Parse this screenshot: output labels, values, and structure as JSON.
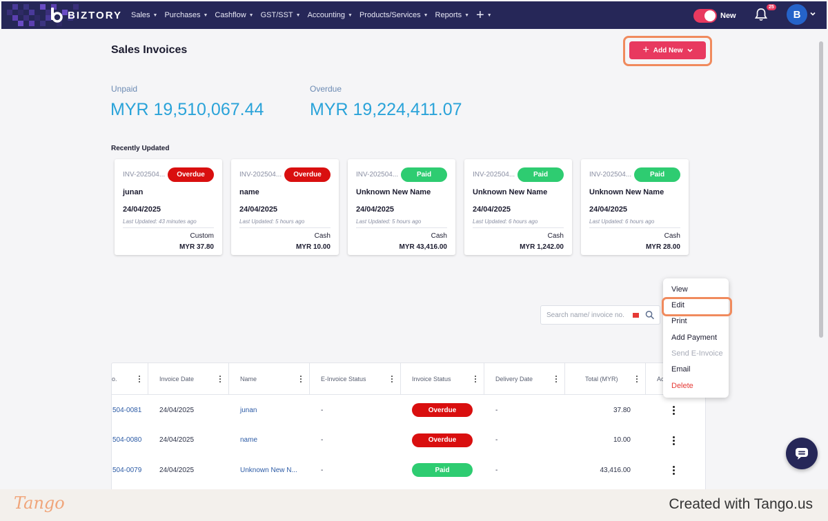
{
  "nav": {
    "brand": "BIZTORY",
    "menu": [
      {
        "label": "Sales"
      },
      {
        "label": "Purchases"
      },
      {
        "label": "Cashflow"
      },
      {
        "label": "GST/SST"
      },
      {
        "label": "Accounting"
      },
      {
        "label": "Products/Services"
      },
      {
        "label": "Reports"
      },
      {
        "label": "+"
      }
    ],
    "toggle_label": "New",
    "notification_count": "25",
    "avatar_initial": "B"
  },
  "page": {
    "title": "Sales Invoices",
    "add_new_label": "Add New"
  },
  "summary": {
    "unpaid_label": "Unpaid",
    "unpaid_value": "MYR 19,510,067.44",
    "overdue_label": "Overdue",
    "overdue_value": "MYR 19,224,411.07"
  },
  "recent": {
    "title": "Recently Updated",
    "cards": [
      {
        "invoice": "INV-202504...",
        "status": "Overdue",
        "name": "junan",
        "date": "24/04/2025",
        "updated": "Last Updated: 43 minutes ago",
        "method": "Custom",
        "amount": "MYR 37.80"
      },
      {
        "invoice": "INV-202504...",
        "status": "Overdue",
        "name": "name",
        "date": "24/04/2025",
        "updated": "Last Updated: 5 hours ago",
        "method": "Cash",
        "amount": "MYR 10.00"
      },
      {
        "invoice": "INV-202504...",
        "status": "Paid",
        "name": "Unknown New Name",
        "date": "24/04/2025",
        "updated": "Last Updated: 5 hours ago",
        "method": "Cash",
        "amount": "MYR 43,416.00"
      },
      {
        "invoice": "INV-202504...",
        "status": "Paid",
        "name": "Unknown New Name",
        "date": "24/04/2025",
        "updated": "Last Updated: 6 hours ago",
        "method": "Cash",
        "amount": "MYR 1,242.00"
      },
      {
        "invoice": "INV-202504...",
        "status": "Paid",
        "name": "Unknown New Name",
        "date": "24/04/2025",
        "updated": "Last Updated: 6 hours ago",
        "method": "Cash",
        "amount": "MYR 28.00"
      }
    ]
  },
  "search": {
    "placeholder": "Search name/ invoice no."
  },
  "table": {
    "columns": [
      "o.",
      "Invoice Date",
      "Name",
      "E-Invoice Status",
      "Invoice Status",
      "Delivery Date",
      "Total (MYR)",
      "Act"
    ],
    "rows": [
      {
        "no": "504-0081",
        "date": "24/04/2025",
        "name": "junan",
        "einvoice": "-",
        "status": "Overdue",
        "delivery": "-",
        "total": "37.80"
      },
      {
        "no": "504-0080",
        "date": "24/04/2025",
        "name": "name",
        "einvoice": "-",
        "status": "Overdue",
        "delivery": "-",
        "total": "10.00"
      },
      {
        "no": "504-0079",
        "date": "24/04/2025",
        "name": "Unknown New N...",
        "einvoice": "-",
        "status": "Paid",
        "delivery": "-",
        "total": "43,416.00"
      }
    ]
  },
  "action_menu": {
    "items": [
      {
        "label": "View",
        "state": "normal"
      },
      {
        "label": "Edit",
        "state": "highlighted"
      },
      {
        "label": "Print",
        "state": "normal"
      },
      {
        "label": "Add Payment",
        "state": "normal"
      },
      {
        "label": "Send E-Invoice",
        "state": "disabled"
      },
      {
        "label": "Email",
        "state": "normal"
      },
      {
        "label": "Delete",
        "state": "danger"
      }
    ]
  },
  "footer": {
    "logo": "Tango",
    "created_with": "Created with Tango.us"
  },
  "colors": {
    "nav_bg": "#262758",
    "accent": "#e8395f",
    "overdue": "#d90f0f",
    "paid": "#2ecc71",
    "amount_blue": "#2aa3d9",
    "highlight": "#f08a5d"
  },
  "icons": {
    "bell": "bell-icon",
    "search": "search-icon",
    "chat": "chat-icon",
    "plus": "plus-icon",
    "chevron": "chevron-down-icon",
    "kebab": "kebab-icon"
  }
}
